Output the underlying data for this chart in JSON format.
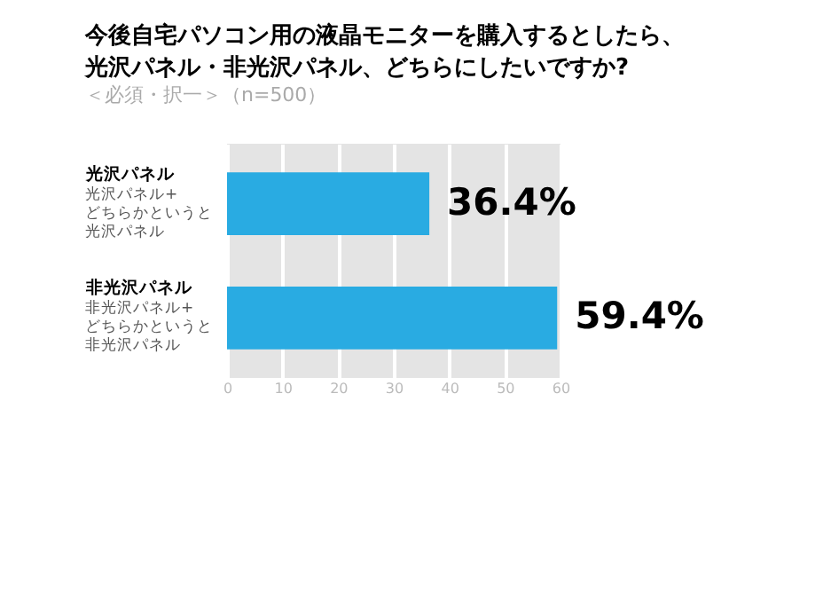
{
  "chart_data": {
    "type": "bar",
    "orientation": "horizontal",
    "title": "今後自宅パソコン用の液晶モニターを購入するとしたら、光沢パネル・非光沢パネル、どちらにしたいですか?",
    "subtitle": "＜必須・択一＞（n=500）",
    "categories": [
      "光沢パネル",
      "非光沢パネル"
    ],
    "annotations": [
      "光沢パネル+どちらかというと光沢パネル",
      "非光沢パネル+どちらかというと非光沢パネル"
    ],
    "values": [
      36.4,
      59.4
    ],
    "color": "#29abe2",
    "value_labels": [
      "36.4%",
      "59.4%"
    ],
    "xlim": [
      0,
      60
    ],
    "xticks": [
      0,
      10,
      20,
      30,
      40,
      50,
      60
    ],
    "grid": "x"
  }
}
